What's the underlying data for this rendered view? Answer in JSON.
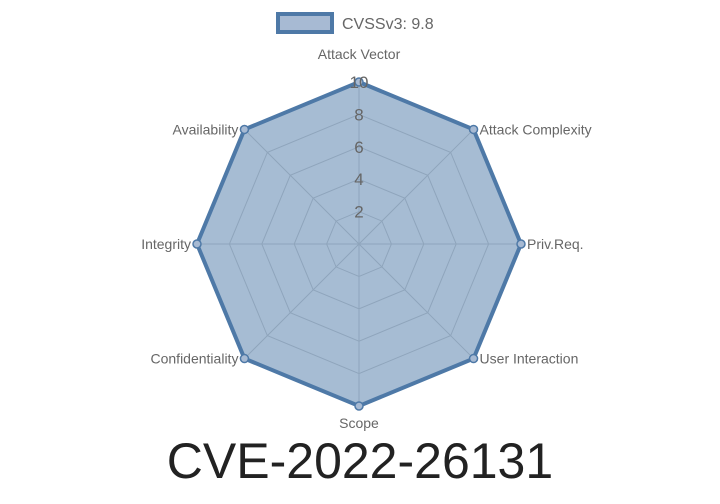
{
  "chart_data": {
    "type": "radar",
    "title": "CVE-2022-26131",
    "categories": [
      "Attack Vector",
      "Attack Complexity",
      "Priv.Req.",
      "User Interaction",
      "Scope",
      "Confidentiality",
      "Integrity",
      "Availability"
    ],
    "series": [
      {
        "name": "CVSSv3: 9.8",
        "values": [
          10,
          10,
          10,
          10,
          10,
          10,
          10,
          10
        ]
      }
    ],
    "rlim": [
      0,
      10
    ],
    "ticks": [
      "2",
      "4",
      "6",
      "8",
      "10"
    ],
    "legend": "top",
    "colors": {
      "stroke": "#4e79a7",
      "fill": "rgba(78,121,167,0.5)",
      "grid": "#d0d0d0"
    }
  }
}
